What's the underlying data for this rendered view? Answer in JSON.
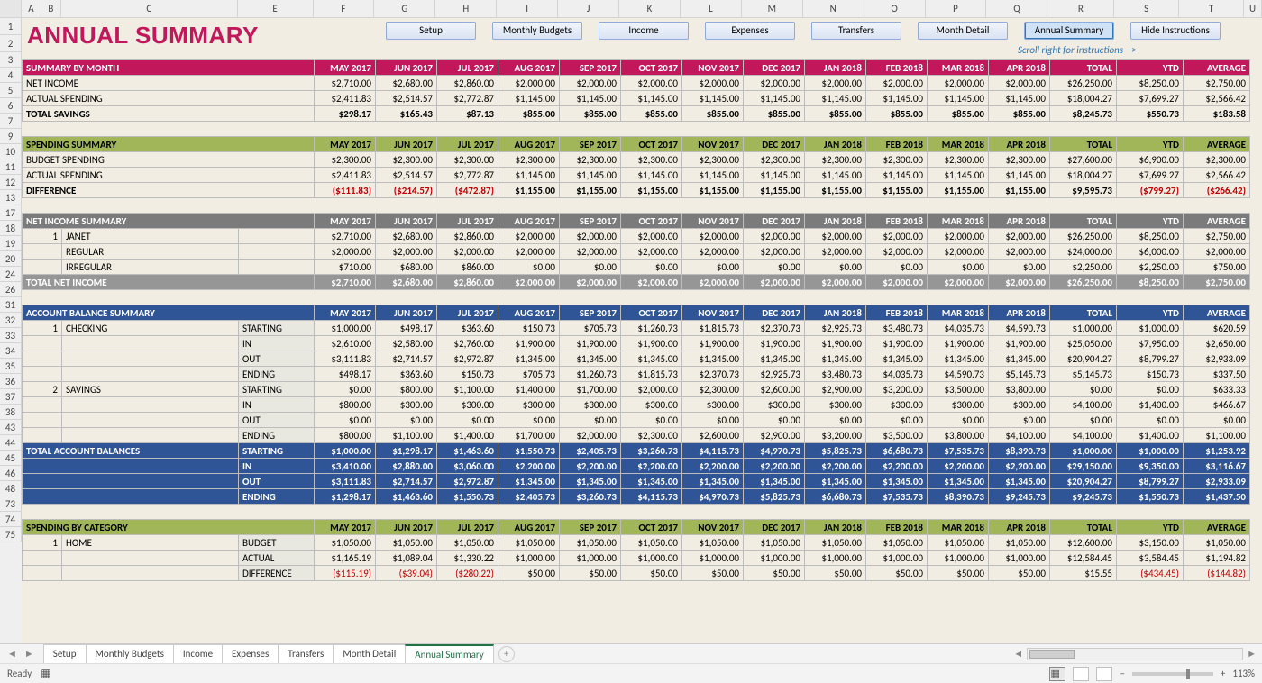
{
  "colHeaders": [
    "A",
    "B",
    "C",
    "E",
    "F",
    "G",
    "H",
    "I",
    "J",
    "K",
    "L",
    "M",
    "N",
    "O",
    "P",
    "Q",
    "R",
    "S",
    "T",
    "U"
  ],
  "rowHeaders": [
    "1",
    "2",
    "3",
    "4",
    "5",
    "6",
    "7",
    "9",
    "10",
    "11",
    "12",
    "13",
    "17",
    "18",
    "19",
    "20",
    "24",
    "26",
    "31",
    "32",
    "33",
    "34",
    "35",
    "36",
    "37",
    "38",
    "43",
    "44",
    "45",
    "46",
    "48",
    "73",
    "74",
    "75"
  ],
  "title": "ANNUAL SUMMARY",
  "navButtons": [
    "Setup",
    "Monthly Budgets",
    "Income",
    "Expenses",
    "Transfers",
    "Month Detail",
    "Annual Summary",
    "Hide Instructions"
  ],
  "activeNav": 6,
  "instrNote": "Scroll right for instructions -->",
  "months": [
    "MAY 2017",
    "JUN 2017",
    "JUL 2017",
    "AUG 2017",
    "SEP 2017",
    "OCT 2017",
    "NOV 2017",
    "DEC 2017",
    "JAN 2018",
    "FEB 2018",
    "MAR 2018",
    "APR 2018",
    "TOTAL",
    "YTD",
    "AVERAGE"
  ],
  "sections": {
    "summaryByMonth": {
      "title": "SUMMARY BY MONTH",
      "rows": [
        {
          "label": "NET INCOME",
          "vals": [
            "$2,710.00",
            "$2,680.00",
            "$2,860.00",
            "$2,000.00",
            "$2,000.00",
            "$2,000.00",
            "$2,000.00",
            "$2,000.00",
            "$2,000.00",
            "$2,000.00",
            "$2,000.00",
            "$2,000.00",
            "$26,250.00",
            "$8,250.00",
            "$2,750.00"
          ]
        },
        {
          "label": "ACTUAL SPENDING",
          "vals": [
            "$2,411.83",
            "$2,514.57",
            "$2,772.87",
            "$1,145.00",
            "$1,145.00",
            "$1,145.00",
            "$1,145.00",
            "$1,145.00",
            "$1,145.00",
            "$1,145.00",
            "$1,145.00",
            "$1,145.00",
            "$18,004.27",
            "$7,699.27",
            "$2,566.42"
          ]
        },
        {
          "label": "TOTAL SAVINGS",
          "bold": true,
          "vals": [
            "$298.17",
            "$165.43",
            "$87.13",
            "$855.00",
            "$855.00",
            "$855.00",
            "$855.00",
            "$855.00",
            "$855.00",
            "$855.00",
            "$855.00",
            "$855.00",
            "$8,245.73",
            "$550.73",
            "$183.58"
          ]
        }
      ]
    },
    "spendingSummary": {
      "title": "SPENDING SUMMARY",
      "rows": [
        {
          "label": "BUDGET SPENDING",
          "vals": [
            "$2,300.00",
            "$2,300.00",
            "$2,300.00",
            "$2,300.00",
            "$2,300.00",
            "$2,300.00",
            "$2,300.00",
            "$2,300.00",
            "$2,300.00",
            "$2,300.00",
            "$2,300.00",
            "$2,300.00",
            "$27,600.00",
            "$6,900.00",
            "$2,300.00"
          ]
        },
        {
          "label": "ACTUAL SPENDING",
          "vals": [
            "$2,411.83",
            "$2,514.57",
            "$2,772.87",
            "$1,145.00",
            "$1,145.00",
            "$1,145.00",
            "$1,145.00",
            "$1,145.00",
            "$1,145.00",
            "$1,145.00",
            "$1,145.00",
            "$1,145.00",
            "$18,004.27",
            "$7,699.27",
            "$2,566.42"
          ]
        },
        {
          "label": "DIFFERENCE",
          "bold": true,
          "vals": [
            "($111.83)",
            "($214.57)",
            "($472.87)",
            "$1,155.00",
            "$1,155.00",
            "$1,155.00",
            "$1,155.00",
            "$1,155.00",
            "$1,155.00",
            "$1,155.00",
            "$1,155.00",
            "$1,155.00",
            "$9,595.73",
            "($799.27)",
            "($266.42)"
          ],
          "neg": [
            0,
            1,
            2,
            13,
            14
          ]
        }
      ]
    },
    "netIncome": {
      "title": "NET INCOME SUMMARY",
      "rows": [
        {
          "idx": "1",
          "label": "JANET",
          "vals": [
            "$2,710.00",
            "$2,680.00",
            "$2,860.00",
            "$2,000.00",
            "$2,000.00",
            "$2,000.00",
            "$2,000.00",
            "$2,000.00",
            "$2,000.00",
            "$2,000.00",
            "$2,000.00",
            "$2,000.00",
            "$26,250.00",
            "$8,250.00",
            "$2,750.00"
          ]
        },
        {
          "idx": "",
          "label": "REGULAR",
          "sub": true,
          "vals": [
            "$2,000.00",
            "$2,000.00",
            "$2,000.00",
            "$2,000.00",
            "$2,000.00",
            "$2,000.00",
            "$2,000.00",
            "$2,000.00",
            "$2,000.00",
            "$2,000.00",
            "$2,000.00",
            "$2,000.00",
            "$24,000.00",
            "$6,000.00",
            "$2,000.00"
          ]
        },
        {
          "idx": "",
          "label": "IRREGULAR",
          "sub": true,
          "vals": [
            "$710.00",
            "$680.00",
            "$860.00",
            "$0.00",
            "$0.00",
            "$0.00",
            "$0.00",
            "$0.00",
            "$0.00",
            "$0.00",
            "$0.00",
            "$0.00",
            "$2,250.00",
            "$2,250.00",
            "$750.00"
          ]
        }
      ],
      "total": {
        "label": "TOTAL NET INCOME",
        "vals": [
          "$2,710.00",
          "$2,680.00",
          "$2,860.00",
          "$2,000.00",
          "$2,000.00",
          "$2,000.00",
          "$2,000.00",
          "$2,000.00",
          "$2,000.00",
          "$2,000.00",
          "$2,000.00",
          "$2,000.00",
          "$26,250.00",
          "$8,250.00",
          "$2,750.00"
        ]
      }
    },
    "accountBal": {
      "title": "ACCOUNT BALANCE SUMMARY",
      "accounts": [
        {
          "idx": "1",
          "name": "CHECKING",
          "rows": [
            {
              "k": "STARTING",
              "vals": [
                "$1,000.00",
                "$498.17",
                "$363.60",
                "$150.73",
                "$705.73",
                "$1,260.73",
                "$1,815.73",
                "$2,370.73",
                "$2,925.73",
                "$3,480.73",
                "$4,035.73",
                "$4,590.73",
                "$1,000.00",
                "$1,000.00",
                "$620.59"
              ]
            },
            {
              "k": "IN",
              "vals": [
                "$2,610.00",
                "$2,580.00",
                "$2,760.00",
                "$1,900.00",
                "$1,900.00",
                "$1,900.00",
                "$1,900.00",
                "$1,900.00",
                "$1,900.00",
                "$1,900.00",
                "$1,900.00",
                "$1,900.00",
                "$25,050.00",
                "$7,950.00",
                "$2,650.00"
              ]
            },
            {
              "k": "OUT",
              "vals": [
                "$3,111.83",
                "$2,714.57",
                "$2,972.87",
                "$1,345.00",
                "$1,345.00",
                "$1,345.00",
                "$1,345.00",
                "$1,345.00",
                "$1,345.00",
                "$1,345.00",
                "$1,345.00",
                "$1,345.00",
                "$20,904.27",
                "$8,799.27",
                "$2,933.09"
              ]
            },
            {
              "k": "ENDING",
              "vals": [
                "$498.17",
                "$363.60",
                "$150.73",
                "$705.73",
                "$1,260.73",
                "$1,815.73",
                "$2,370.73",
                "$2,925.73",
                "$3,480.73",
                "$4,035.73",
                "$4,590.73",
                "$5,145.73",
                "$5,145.73",
                "$150.73",
                "$337.50"
              ]
            }
          ]
        },
        {
          "idx": "2",
          "name": "SAVINGS",
          "rows": [
            {
              "k": "STARTING",
              "vals": [
                "$0.00",
                "$800.00",
                "$1,100.00",
                "$1,400.00",
                "$1,700.00",
                "$2,000.00",
                "$2,300.00",
                "$2,600.00",
                "$2,900.00",
                "$3,200.00",
                "$3,500.00",
                "$3,800.00",
                "$0.00",
                "$0.00",
                "$633.33"
              ]
            },
            {
              "k": "IN",
              "vals": [
                "$800.00",
                "$300.00",
                "$300.00",
                "$300.00",
                "$300.00",
                "$300.00",
                "$300.00",
                "$300.00",
                "$300.00",
                "$300.00",
                "$300.00",
                "$300.00",
                "$4,100.00",
                "$1,400.00",
                "$466.67"
              ]
            },
            {
              "k": "OUT",
              "vals": [
                "$0.00",
                "$0.00",
                "$0.00",
                "$0.00",
                "$0.00",
                "$0.00",
                "$0.00",
                "$0.00",
                "$0.00",
                "$0.00",
                "$0.00",
                "$0.00",
                "$0.00",
                "$0.00",
                "$0.00"
              ]
            },
            {
              "k": "ENDING",
              "vals": [
                "$800.00",
                "$1,100.00",
                "$1,400.00",
                "$1,700.00",
                "$2,000.00",
                "$2,300.00",
                "$2,600.00",
                "$2,900.00",
                "$3,200.00",
                "$3,500.00",
                "$3,800.00",
                "$4,100.00",
                "$4,100.00",
                "$1,400.00",
                "$1,100.00"
              ]
            }
          ]
        }
      ],
      "totals": {
        "label": "TOTAL ACCOUNT BALANCES",
        "rows": [
          {
            "k": "STARTING",
            "vals": [
              "$1,000.00",
              "$1,298.17",
              "$1,463.60",
              "$1,550.73",
              "$2,405.73",
              "$3,260.73",
              "$4,115.73",
              "$4,970.73",
              "$5,825.73",
              "$6,680.73",
              "$7,535.73",
              "$8,390.73",
              "$1,000.00",
              "$1,000.00",
              "$1,253.92"
            ]
          },
          {
            "k": "IN",
            "vals": [
              "$3,410.00",
              "$2,880.00",
              "$3,060.00",
              "$2,200.00",
              "$2,200.00",
              "$2,200.00",
              "$2,200.00",
              "$2,200.00",
              "$2,200.00",
              "$2,200.00",
              "$2,200.00",
              "$2,200.00",
              "$29,150.00",
              "$9,350.00",
              "$3,116.67"
            ]
          },
          {
            "k": "OUT",
            "vals": [
              "$3,111.83",
              "$2,714.57",
              "$2,972.87",
              "$1,345.00",
              "$1,345.00",
              "$1,345.00",
              "$1,345.00",
              "$1,345.00",
              "$1,345.00",
              "$1,345.00",
              "$1,345.00",
              "$1,345.00",
              "$20,904.27",
              "$8,799.27",
              "$2,933.09"
            ]
          },
          {
            "k": "ENDING",
            "vals": [
              "$1,298.17",
              "$1,463.60",
              "$1,550.73",
              "$2,405.73",
              "$3,260.73",
              "$4,115.73",
              "$4,970.73",
              "$5,825.73",
              "$6,680.73",
              "$7,535.73",
              "$8,390.73",
              "$9,245.73",
              "$9,245.73",
              "$1,550.73",
              "$1,437.50"
            ]
          }
        ]
      }
    },
    "spendingByCat": {
      "title": "SPENDING BY CATEGORY",
      "cats": [
        {
          "idx": "1",
          "name": "HOME",
          "rows": [
            {
              "k": "BUDGET",
              "vals": [
                "$1,050.00",
                "$1,050.00",
                "$1,050.00",
                "$1,050.00",
                "$1,050.00",
                "$1,050.00",
                "$1,050.00",
                "$1,050.00",
                "$1,050.00",
                "$1,050.00",
                "$1,050.00",
                "$1,050.00",
                "$12,600.00",
                "$3,150.00",
                "$1,050.00"
              ]
            },
            {
              "k": "ACTUAL",
              "vals": [
                "$1,165.19",
                "$1,089.04",
                "$1,330.22",
                "$1,000.00",
                "$1,000.00",
                "$1,000.00",
                "$1,000.00",
                "$1,000.00",
                "$1,000.00",
                "$1,000.00",
                "$1,000.00",
                "$1,000.00",
                "$12,584.45",
                "$3,584.45",
                "$1,194.82"
              ]
            },
            {
              "k": "DIFFERENCE",
              "partial": true,
              "vals": [
                "($115.19)",
                "($39.04)",
                "($280.22)",
                "$50.00",
                "$50.00",
                "$50.00",
                "$50.00",
                "$50.00",
                "$50.00",
                "$50.00",
                "$50.00",
                "$50.00",
                "$15.55",
                "($434.45)",
                "($144.82)"
              ],
              "neg": [
                0,
                1,
                2,
                13,
                14
              ]
            }
          ]
        }
      ]
    }
  },
  "sheetTabs": [
    "Setup",
    "Monthly Budgets",
    "Income",
    "Expenses",
    "Transfers",
    "Month Detail",
    "Annual Summary"
  ],
  "activeTab": 6,
  "status": {
    "ready": "Ready",
    "zoom": "113%"
  }
}
